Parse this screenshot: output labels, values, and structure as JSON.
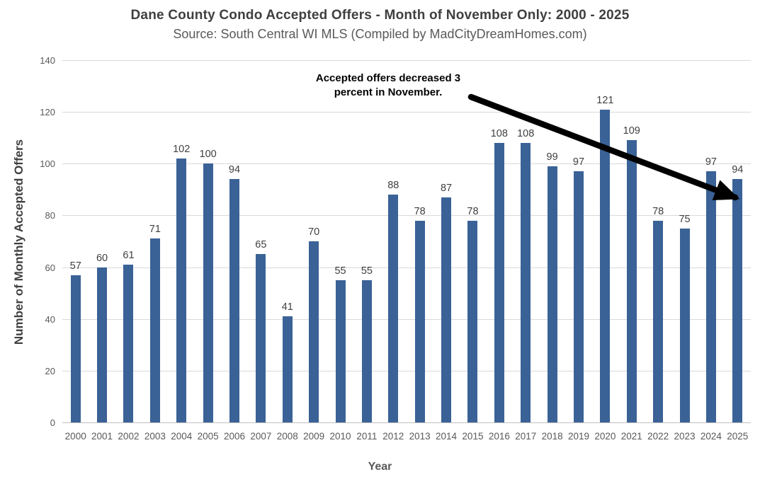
{
  "chart_data": {
    "type": "bar",
    "title": "Dane County Condo Accepted Offers - Month of November Only: 2000 - 2025",
    "subtitle": "Source: South Central WI MLS (Compiled by MadCityDreamHomes.com)",
    "xlabel": "Year",
    "ylabel": "Number of Monthly Accepted Offers",
    "categories": [
      "2000",
      "2001",
      "2002",
      "2003",
      "2004",
      "2005",
      "2006",
      "2007",
      "2008",
      "2009",
      "2010",
      "2011",
      "2012",
      "2013",
      "2014",
      "2015",
      "2016",
      "2017",
      "2018",
      "2019",
      "2020",
      "2021",
      "2022",
      "2023",
      "2024",
      "2025"
    ],
    "values": [
      57,
      60,
      61,
      71,
      102,
      100,
      94,
      65,
      41,
      70,
      55,
      55,
      88,
      78,
      87,
      78,
      108,
      108,
      99,
      97,
      121,
      109,
      78,
      75,
      97,
      94
    ],
    "ylim": [
      0,
      140
    ],
    "yticks": [
      0,
      20,
      40,
      60,
      80,
      100,
      120,
      140
    ],
    "grid": "horizontal",
    "legend": "none",
    "data_labels": true,
    "bar_color": "#3a6296",
    "grid_color": "#d9d9d9",
    "arrow_color": "#000000",
    "annotation_lines": [
      "Accepted offers decreased 3",
      "percent in November."
    ]
  }
}
